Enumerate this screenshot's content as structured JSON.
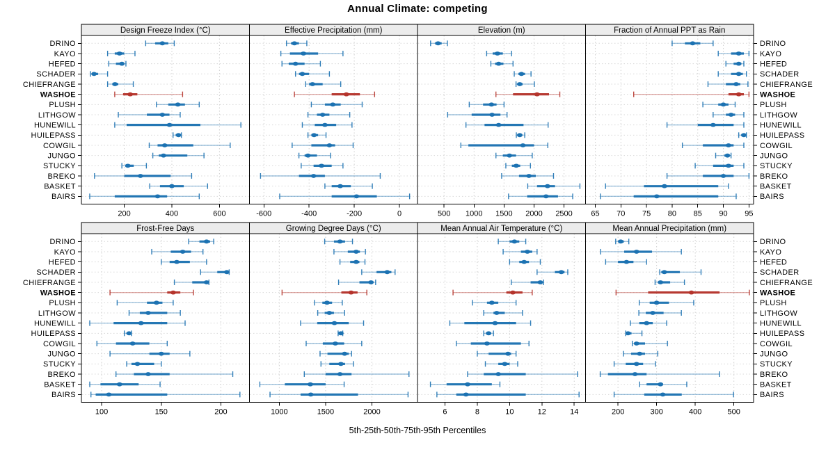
{
  "title": "Annual Climate: competing",
  "caption": "5th-25th-50th-75th-95th Percentiles",
  "percentiles_shown": [
    5,
    25,
    50,
    75,
    95
  ],
  "sites": [
    "DRINO",
    "KAYO",
    "HEFED",
    "SCHADER",
    "CHIEFRANGE",
    "WASHOE",
    "PLUSH",
    "LITHGOW",
    "HUNEWILL",
    "HUILEPASS",
    "COWGIL",
    "JUNGO",
    "STUCKY",
    "BREKO",
    "BASKET",
    "BAIRS"
  ],
  "highlighted_site": "WASHOE",
  "colors": {
    "series": "#1c72b2",
    "highlight": "#b5342c",
    "grid": "#cfcfcf",
    "strip_bg": "#ececec",
    "border": "#000000",
    "text": "#000000"
  },
  "chart_data": [
    {
      "type": "dotplot-intervals",
      "title": "Design Freeze Index (°C)",
      "row": "top",
      "col": 0,
      "ticks": [
        200,
        400,
        600
      ],
      "xlim": [
        20,
        726
      ],
      "values": {
        "DRINO": [
          290,
          330,
          360,
          385,
          410
        ],
        "KAYO": [
          130,
          160,
          180,
          200,
          245
        ],
        "HEFED": [
          135,
          165,
          190,
          200,
          207
        ],
        "SCHADER": [
          58,
          65,
          73,
          90,
          130
        ],
        "CHIEFRANGE": [
          130,
          150,
          161,
          175,
          238
        ],
        "WASHOE": [
          160,
          195,
          225,
          255,
          445
        ],
        "PLUSH": [
          335,
          385,
          425,
          455,
          515
        ],
        "LITHGOW": [
          175,
          295,
          360,
          390,
          435
        ],
        "HUNEWILL": [
          160,
          210,
          390,
          520,
          690
        ],
        "HUILEPASS": [
          405,
          416,
          428,
          435,
          440
        ],
        "COWGIL": [
          305,
          340,
          370,
          490,
          645
        ],
        "JUNGO": [
          320,
          345,
          365,
          465,
          535
        ],
        "STUCKY": [
          190,
          205,
          215,
          240,
          293
        ],
        "BREKO": [
          75,
          200,
          268,
          395,
          483
        ],
        "BASKET": [
          307,
          350,
          400,
          450,
          550
        ],
        "BAIRS": [
          55,
          160,
          340,
          380,
          515
        ]
      }
    },
    {
      "type": "dotplot-intervals",
      "title": "Effective Precipitation (mm)",
      "row": "top",
      "col": 1,
      "ticks": [
        -600,
        -400,
        -200,
        0
      ],
      "xlim": [
        -664,
        80
      ],
      "values": {
        "DRINO": [
          -500,
          -480,
          -465,
          -445,
          -410
        ],
        "KAYO": [
          -525,
          -485,
          -425,
          -360,
          -250
        ],
        "HEFED": [
          -520,
          -490,
          -460,
          -420,
          -350
        ],
        "SCHADER": [
          -460,
          -445,
          -430,
          -400,
          -310
        ],
        "CHIEFRANGE": [
          -415,
          -400,
          -385,
          -340,
          -260
        ],
        "WASHOE": [
          -465,
          -300,
          -235,
          -175,
          -110
        ],
        "PLUSH": [
          -390,
          -330,
          -295,
          -260,
          -165
        ],
        "LITHGOW": [
          -405,
          -365,
          -340,
          -310,
          -220
        ],
        "HUNEWILL": [
          -430,
          -375,
          -330,
          -280,
          -210
        ],
        "HUILEPASS": [
          -405,
          -390,
          -378,
          -360,
          -325
        ],
        "COWGIL": [
          -475,
          -390,
          -310,
          -285,
          -205
        ],
        "JUNGO": [
          -445,
          -420,
          -405,
          -365,
          -305
        ],
        "STUCKY": [
          -435,
          -380,
          -345,
          -300,
          -250
        ],
        "BREKO": [
          -615,
          -445,
          -380,
          -330,
          -85
        ],
        "BASKET": [
          -330,
          -300,
          -262,
          -215,
          -120
        ],
        "BAIRS": [
          -530,
          -300,
          -190,
          -100,
          45
        ]
      }
    },
    {
      "type": "dotplot-intervals",
      "title": "Elevation (m)",
      "row": "top",
      "col": 2,
      "ticks": [
        500,
        1000,
        1500,
        2000,
        2500
      ],
      "xlim": [
        57,
        2859
      ],
      "values": {
        "DRINO": [
          275,
          350,
          400,
          460,
          555
        ],
        "KAYO": [
          1210,
          1310,
          1390,
          1480,
          1625
        ],
        "HEFED": [
          1280,
          1350,
          1410,
          1490,
          1650
        ],
        "SCHADER": [
          1670,
          1740,
          1790,
          1850,
          1950
        ],
        "CHIEFRANGE": [
          1700,
          1735,
          1762,
          1810,
          2005
        ],
        "WASHOE": [
          1365,
          1650,
          2050,
          2250,
          2430
        ],
        "PLUSH": [
          920,
          1150,
          1290,
          1375,
          1500
        ],
        "LITHGOW": [
          560,
          960,
          1300,
          1440,
          1550
        ],
        "HUNEWILL": [
          865,
          1175,
          1410,
          1825,
          2235
        ],
        "HUILEPASS": [
          1705,
          1730,
          1762,
          1800,
          1845
        ],
        "COWGIL": [
          780,
          905,
          1815,
          2000,
          2230
        ],
        "JUNGO": [
          1365,
          1480,
          1590,
          1700,
          1970
        ],
        "STUCKY": [
          1530,
          1630,
          1704,
          1770,
          1940
        ],
        "BREKO": [
          1460,
          1750,
          1915,
          2030,
          2325
        ],
        "BASKET": [
          1895,
          2050,
          2225,
          2350,
          2765
        ],
        "BAIRS": [
          1575,
          1885,
          2200,
          2400,
          2645
        ]
      }
    },
    {
      "type": "dotplot-intervals",
      "title": "Fraction of Annual PPT as Rain",
      "row": "top",
      "col": 3,
      "ticks": [
        65,
        70,
        75,
        80,
        85,
        90,
        95
      ],
      "xlim": [
        63.1,
        95.9
      ],
      "values": {
        "DRINO": [
          80,
          82.5,
          84,
          85.5,
          88
        ],
        "KAYO": [
          89,
          91.5,
          93,
          94,
          95
        ],
        "HEFED": [
          90.5,
          92,
          93,
          93.5,
          94
        ],
        "SCHADER": [
          89,
          91.5,
          93,
          93.8,
          94.5
        ],
        "CHIEFRANGE": [
          87,
          90.5,
          92.5,
          93.3,
          94.8
        ],
        "WASHOE": [
          72.5,
          91,
          93,
          94,
          95
        ],
        "PLUSH": [
          86,
          89,
          90,
          91,
          92.3
        ],
        "LITHGOW": [
          88,
          90.5,
          91.5,
          92.3,
          94
        ],
        "HUNEWILL": [
          79,
          85,
          88,
          92,
          94
        ],
        "HUILEPASS": [
          93,
          93.5,
          94,
          94.2,
          94.5
        ],
        "COWGIL": [
          82,
          86,
          91,
          92,
          94
        ],
        "JUNGO": [
          88.5,
          90.2,
          90.8,
          91.2,
          91.5
        ],
        "STUCKY": [
          84.5,
          88,
          91,
          92,
          94
        ],
        "BREKO": [
          79,
          86,
          90,
          92,
          95
        ],
        "BASKET": [
          67,
          74.5,
          78.5,
          89,
          91
        ],
        "BAIRS": [
          66,
          72.5,
          77,
          89,
          92.5
        ]
      }
    },
    {
      "type": "dotplot-intervals",
      "title": "Frost-Free Days",
      "row": "bottom",
      "col": 0,
      "ticks": [
        100,
        150,
        200
      ],
      "xlim": [
        83,
        224
      ],
      "values": {
        "DRINO": [
          173,
          182,
          188,
          191,
          194
        ],
        "KAYO": [
          142,
          158,
          168,
          175,
          185
        ],
        "HEFED": [
          150,
          157,
          163,
          174,
          188
        ],
        "SCHADER": [
          183,
          197,
          205,
          206,
          207
        ],
        "CHIEFRANGE": [
          161,
          176,
          188,
          189,
          190
        ],
        "WASHOE": [
          107,
          155,
          160,
          166,
          177
        ],
        "PLUSH": [
          113,
          138,
          146,
          151,
          160
        ],
        "LITHGOW": [
          123,
          132,
          139,
          155,
          166
        ],
        "HUNEWILL": [
          90,
          110,
          133,
          155,
          170
        ],
        "HUILEPASS": [
          119,
          121,
          123,
          124,
          125
        ],
        "COWGIL": [
          96,
          112,
          126,
          140,
          155
        ],
        "JUNGO": [
          107,
          140,
          150,
          157,
          174
        ],
        "STUCKY": [
          121,
          125,
          130,
          144,
          150
        ],
        "BREKO": [
          112,
          127,
          139,
          157,
          210
        ],
        "BASKET": [
          90,
          99,
          115,
          131,
          149
        ],
        "BAIRS": [
          91,
          95,
          106,
          155,
          216
        ]
      }
    },
    {
      "type": "dotplot-intervals",
      "title": "Growing Degree Days (°C)",
      "row": "bottom",
      "col": 1,
      "ticks": [
        1000,
        1500,
        2000
      ],
      "xlim": [
        678,
        2492
      ],
      "values": {
        "DRINO": [
          1490,
          1590,
          1655,
          1710,
          1790
        ],
        "KAYO": [
          1590,
          1740,
          1830,
          1870,
          1930
        ],
        "HEFED": [
          1655,
          1765,
          1830,
          1865,
          1925
        ],
        "SCHADER": [
          1890,
          2050,
          2165,
          2210,
          2250
        ],
        "CHIEFRANGE": [
          1640,
          1865,
          1990,
          2010,
          2040
        ],
        "WASHOE": [
          1030,
          1670,
          1775,
          1845,
          1945
        ],
        "PLUSH": [
          1380,
          1465,
          1515,
          1570,
          1680
        ],
        "LITHGOW": [
          1415,
          1490,
          1540,
          1590,
          1705
        ],
        "HUNEWILL": [
          1230,
          1410,
          1595,
          1750,
          1910
        ],
        "HUILEPASS": [
          1635,
          1650,
          1665,
          1675,
          1685
        ],
        "COWGIL": [
          1290,
          1470,
          1605,
          1700,
          1890
        ],
        "JUNGO": [
          1440,
          1520,
          1705,
          1750,
          1780
        ],
        "STUCKY": [
          1450,
          1540,
          1665,
          1710,
          1800
        ],
        "BREKO": [
          1270,
          1500,
          1655,
          1780,
          2400
        ],
        "BASKET": [
          790,
          1060,
          1335,
          1500,
          1700
        ],
        "BAIRS": [
          900,
          1230,
          1340,
          1850,
          2390
        ]
      }
    },
    {
      "type": "dotplot-intervals",
      "title": "Mean Annual Air Temperature (°C)",
      "row": "bottom",
      "col": 2,
      "ticks": [
        6,
        8,
        10,
        12,
        14
      ],
      "xlim": [
        4.3,
        14.7
      ],
      "values": {
        "DRINO": [
          9.3,
          10.0,
          10.3,
          10.6,
          11.0
        ],
        "KAYO": [
          9.6,
          10.7,
          11.1,
          11.4,
          11.7
        ],
        "HEFED": [
          10.0,
          10.6,
          10.9,
          11.2,
          11.9
        ],
        "SCHADER": [
          11.7,
          12.8,
          13.2,
          13.4,
          13.6
        ],
        "CHIEFRANGE": [
          10.1,
          11.3,
          11.9,
          12.0,
          12.1
        ],
        "WASHOE": [
          6.5,
          9.8,
          10.2,
          10.8,
          11.4
        ],
        "PLUSH": [
          7.7,
          8.6,
          8.9,
          9.3,
          10.4
        ],
        "LITHGOW": [
          8.4,
          9.0,
          9.2,
          9.7,
          10.8
        ],
        "HUNEWILL": [
          6.3,
          7.2,
          9.1,
          10.4,
          11.3
        ],
        "HUILEPASS": [
          8.4,
          8.6,
          8.7,
          8.85,
          9.0
        ],
        "COWGIL": [
          6.7,
          7.6,
          8.6,
          10.7,
          11.2
        ],
        "JUNGO": [
          8.0,
          8.7,
          9.9,
          10.1,
          10.4
        ],
        "STUCKY": [
          8.5,
          9.3,
          9.7,
          10.0,
          10.5
        ],
        "BREKO": [
          7.4,
          8.4,
          9.3,
          11.0,
          14.2
        ],
        "BASKET": [
          5.1,
          6.1,
          7.4,
          8.9,
          9.4
        ],
        "BAIRS": [
          5.5,
          6.7,
          7.3,
          11.0,
          14.3
        ]
      }
    },
    {
      "type": "dotplot-intervals",
      "title": "Mean Annual Precipitation (mm)",
      "row": "bottom",
      "col": 3,
      "ticks": [
        200,
        300,
        400,
        500
      ],
      "xlim": [
        116,
        551
      ],
      "values": {
        "DRINO": [
          194,
          201,
          207,
          215,
          228
        ],
        "KAYO": [
          155,
          216,
          248,
          288,
          364
        ],
        "HEFED": [
          168,
          200,
          222,
          240,
          274
        ],
        "SCHADER": [
          308,
          312,
          320,
          360,
          415
        ],
        "CHIEFRANGE": [
          296,
          304,
          310,
          335,
          372
        ],
        "WASHOE": [
          195,
          278,
          390,
          463,
          540
        ],
        "PLUSH": [
          255,
          282,
          300,
          332,
          396
        ],
        "LITHGOW": [
          254,
          272,
          290,
          318,
          364
        ],
        "HUNEWILL": [
          232,
          255,
          274,
          290,
          326
        ],
        "HUILEPASS": [
          220,
          223,
          226,
          235,
          262
        ],
        "COWGIL": [
          237,
          243,
          248,
          270,
          328
        ],
        "JUNGO": [
          214,
          234,
          256,
          270,
          303
        ],
        "STUCKY": [
          190,
          220,
          248,
          265,
          297
        ],
        "BREKO": [
          154,
          174,
          244,
          274,
          463
        ],
        "BASKET": [
          256,
          274,
          310,
          316,
          378
        ],
        "BAIRS": [
          190,
          268,
          316,
          365,
          499
        ]
      }
    }
  ]
}
